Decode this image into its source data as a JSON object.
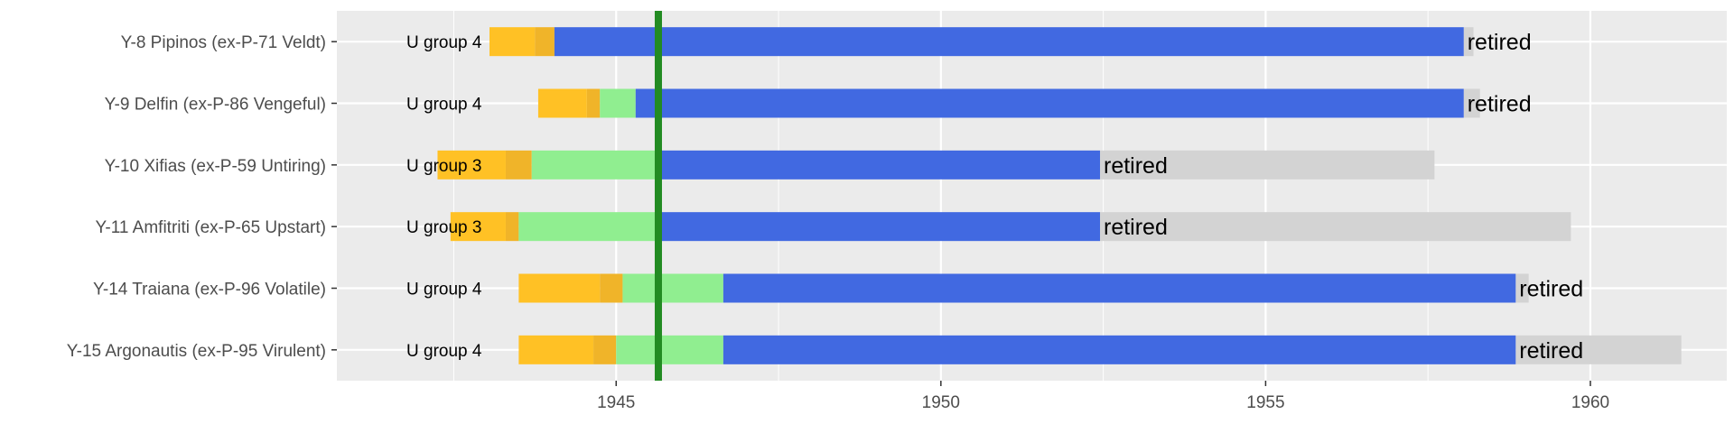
{
  "chart_data": {
    "type": "bar",
    "subtype": "timeline",
    "title": "",
    "xlabel": "",
    "ylabel": "",
    "xlim": [
      1940.7,
      1962.1
    ],
    "x_ticks": [
      1945,
      1950,
      1955,
      1960
    ],
    "grid": true,
    "legend": "none",
    "event_line": {
      "x": 1945.65,
      "color": "#228B22"
    },
    "colors": {
      "building": "#FFC125",
      "fitting": "#F0B429",
      "uk_service": "#90EE90",
      "greek_service": "#4169E1",
      "post_service": "#D3D3D3",
      "panel": "#EBEBEB",
      "grid": "#FFFFFF"
    },
    "rows": [
      {
        "label": "Y-8 Pipinos (ex-P-71 Veldt)",
        "group": "U group 4",
        "status": "retired",
        "building": [
          1943.05,
          1943.75
        ],
        "fitting": [
          1943.75,
          1944.05
        ],
        "uk_service": null,
        "greek_service": [
          1944.05,
          1958.05
        ],
        "post_service": [
          1958.05,
          1958.2
        ]
      },
      {
        "label": "Y-9 Delfin (ex-P-86 Vengeful)",
        "group": "U group 4",
        "status": "retired",
        "building": [
          1943.8,
          1944.55
        ],
        "fitting": [
          1944.55,
          1944.75
        ],
        "uk_service": [
          1944.75,
          1945.3
        ],
        "greek_service": [
          1945.3,
          1958.05
        ],
        "post_service": [
          1958.05,
          1958.3
        ]
      },
      {
        "label": "Y-10 Xifias (ex-P-59 Untiring)",
        "group": "U group 3",
        "status": "retired",
        "building": [
          1942.25,
          1943.3
        ],
        "fitting": [
          1943.3,
          1943.7
        ],
        "uk_service": [
          1943.7,
          1945.6
        ],
        "greek_service": [
          1945.6,
          1952.45
        ],
        "post_service": [
          1952.45,
          1957.6
        ]
      },
      {
        "label": "Y-11 Amfitriti (ex-P-65 Upstart)",
        "group": "U group 3",
        "status": "retired",
        "building": [
          1942.45,
          1943.3
        ],
        "fitting": [
          1943.3,
          1943.5
        ],
        "uk_service": [
          1943.5,
          1945.65
        ],
        "greek_service": [
          1945.65,
          1952.45
        ],
        "post_service": [
          1952.45,
          1959.7
        ]
      },
      {
        "label": "Y-14 Traiana (ex-P-96 Volatile)",
        "group": "U group 4",
        "status": "retired",
        "building": [
          1943.5,
          1944.75
        ],
        "fitting": [
          1944.75,
          1945.1
        ],
        "uk_service": [
          1945.1,
          1946.65
        ],
        "greek_service": [
          1946.65,
          1958.85
        ],
        "post_service": [
          1958.85,
          1959.05
        ]
      },
      {
        "label": "Y-15 Argonautis (ex-P-95 Virulent)",
        "group": "U group 4",
        "status": "retired",
        "building": [
          1943.5,
          1944.65
        ],
        "fitting": [
          1944.65,
          1945.0
        ],
        "uk_service": [
          1945.0,
          1946.65
        ],
        "greek_service": [
          1946.65,
          1958.85
        ],
        "post_service": [
          1958.85,
          1961.4
        ]
      }
    ]
  }
}
